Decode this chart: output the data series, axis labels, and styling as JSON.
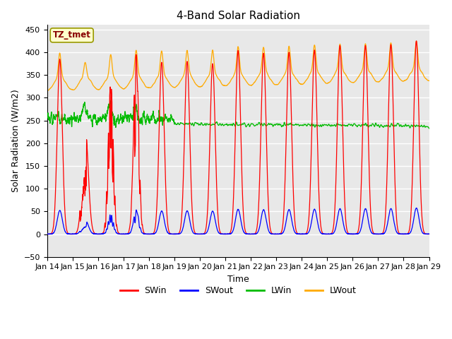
{
  "title": "4-Band Solar Radiation",
  "xlabel": "Time",
  "ylabel": "Solar Radiation (W/m2)",
  "ylim": [
    -50,
    460
  ],
  "xlim_days": [
    0,
    15
  ],
  "x_tick_labels": [
    "Jan 14",
    "Jan 15",
    "Jan 16",
    "Jan 17",
    "Jan 18",
    "Jan 19",
    "Jan 20",
    "Jan 21",
    "Jan 22",
    "Jan 23",
    "Jan 24",
    "Jan 25",
    "Jan 26",
    "Jan 27",
    "Jan 28",
    "Jan 29"
  ],
  "legend_labels": [
    "SWin",
    "SWout",
    "LWin",
    "LWout"
  ],
  "legend_colors": [
    "#ff0000",
    "#0000ff",
    "#00bb00",
    "#ffaa00"
  ],
  "annotation_text": "TZ_tmet",
  "annotation_bg": "#ffffcc",
  "annotation_border": "#999900",
  "annotation_text_color": "#880000",
  "plot_bg_color": "#e8e8e8",
  "grid_color": "#ffffff",
  "title_fontsize": 11,
  "yticks": [
    -50,
    0,
    50,
    100,
    150,
    200,
    250,
    300,
    350,
    400,
    450
  ]
}
